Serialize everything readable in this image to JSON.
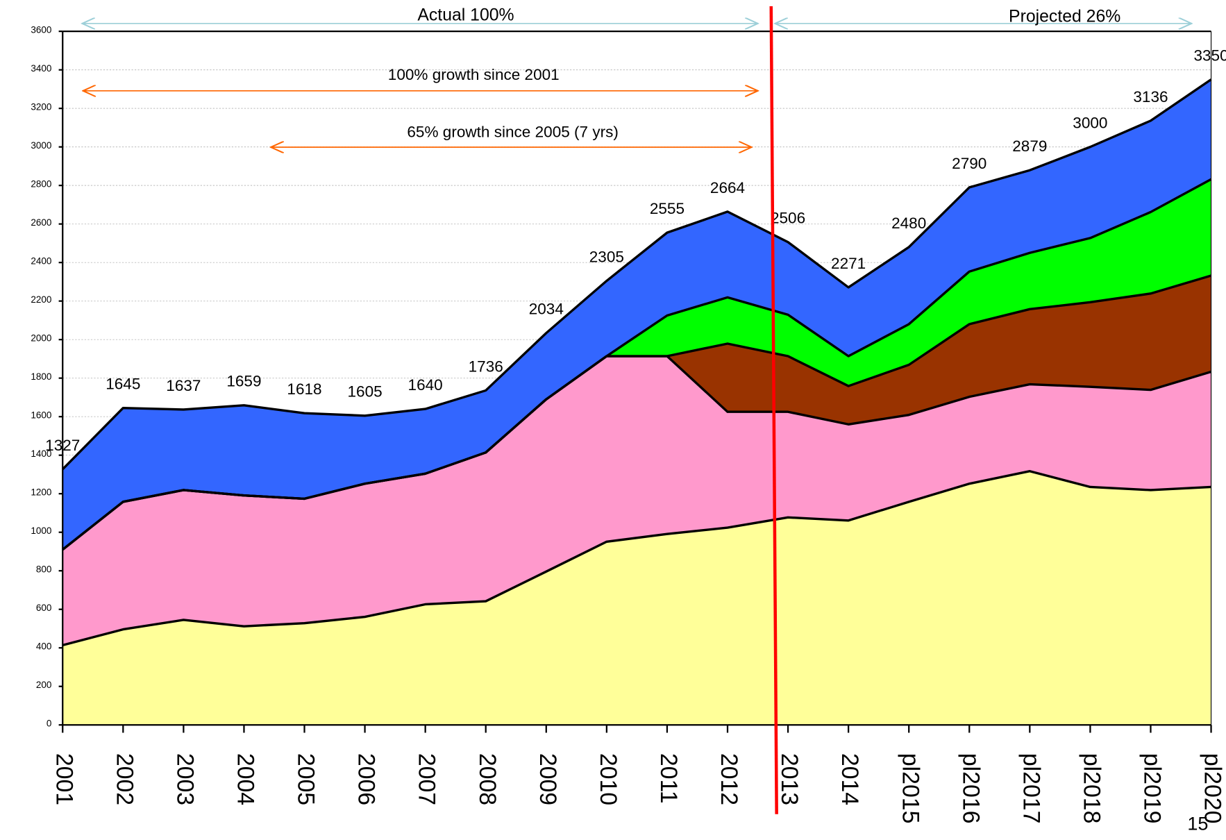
{
  "chart_data": {
    "type": "stacked-area",
    "categories": [
      "2001",
      "2002",
      "2003",
      "2004",
      "2005",
      "2006",
      "2007",
      "2008",
      "2009",
      "2010",
      "2011",
      "2012",
      "2013",
      "2014",
      "pl2015",
      "pl2016",
      "pl2017",
      "pl2018",
      "pl2019",
      "pl2020"
    ],
    "series": [
      {
        "color": "#ffff99",
        "values": [
          414,
          496,
          545,
          512,
          528,
          561,
          626,
          642,
          796,
          951,
          991,
          1024,
          1077,
          1061,
          1158,
          1252,
          1317,
          1235,
          1219,
          1235
        ]
      },
      {
        "color": "#ff99cc",
        "values": [
          496,
          662,
          674,
          679,
          646,
          691,
          678,
          772,
          894,
          963,
          923,
          601,
          548,
          499,
          451,
          451,
          451,
          520,
          520,
          598
        ]
      },
      {
        "color": "#993300",
        "values": [
          0,
          0,
          0,
          0,
          0,
          0,
          0,
          0,
          0,
          0,
          0,
          354,
          289,
          199,
          260,
          377,
          390,
          439,
          500,
          499
        ]
      },
      {
        "color": "#00ff00",
        "values": [
          0,
          0,
          0,
          0,
          0,
          0,
          0,
          0,
          0,
          0,
          211,
          240,
          215,
          155,
          211,
          273,
          292,
          333,
          423,
          500
        ]
      },
      {
        "color": "#3366ff",
        "values": [
          417,
          487,
          418,
          468,
          444,
          353,
          336,
          322,
          344,
          391,
          430,
          445,
          377,
          357,
          400,
          437,
          429,
          473,
          474,
          518
        ]
      }
    ],
    "total_labels": [
      1327,
      1645,
      1637,
      1659,
      1618,
      1605,
      1640,
      1736,
      2034,
      2305,
      2555,
      2664,
      2506,
      2271,
      2480,
      2790,
      2879,
      3000,
      3136,
      3350
    ],
    "ylim": [
      0,
      3600
    ],
    "yticks": [
      0,
      200,
      400,
      600,
      800,
      1000,
      1200,
      1400,
      1600,
      1800,
      2000,
      2200,
      2400,
      2600,
      2800,
      3000,
      3200,
      3400,
      3600
    ],
    "grid": true,
    "annotations": [
      "Actual 100%",
      "Projected 26%",
      "100% growth since 2001",
      "65% growth since 2005 (7 yrs)"
    ],
    "page_number": "15"
  }
}
